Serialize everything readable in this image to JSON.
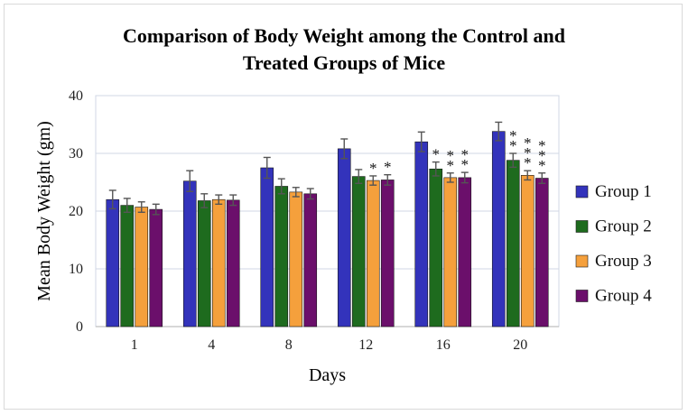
{
  "chart_data": {
    "type": "bar",
    "title_lines": [
      "Comparison of Body Weight among the Control and",
      "Treated Groups of Mice"
    ],
    "xlabel": "Days",
    "ylabel": "Mean Body Weight (gm)",
    "ylim": [
      0,
      40
    ],
    "yticks": [
      0,
      10,
      20,
      30,
      40
    ],
    "grid": true,
    "legend_position": "right",
    "categories": [
      "1",
      "4",
      "8",
      "12",
      "16",
      "20"
    ],
    "series": [
      {
        "name": "Group 1",
        "color": "#3333bb",
        "values": [
          22.0,
          25.2,
          27.5,
          30.8,
          32.0,
          33.8
        ],
        "errors": [
          1.6,
          1.8,
          1.8,
          1.7,
          1.7,
          1.6
        ]
      },
      {
        "name": "Group 2",
        "color": "#1e6b1e",
        "values": [
          21.0,
          21.8,
          24.3,
          26.0,
          27.3,
          28.8
        ],
        "errors": [
          1.2,
          1.2,
          1.3,
          1.2,
          1.2,
          1.2
        ]
      },
      {
        "name": "Group 3",
        "color": "#f5a03c",
        "values": [
          20.7,
          22.0,
          23.3,
          25.3,
          25.8,
          26.2
        ],
        "errors": [
          0.9,
          0.8,
          0.8,
          0.8,
          0.8,
          0.8
        ]
      },
      {
        "name": "Group 4",
        "color": "#6b0f6b",
        "values": [
          20.3,
          21.9,
          23.0,
          25.4,
          25.8,
          25.7
        ],
        "errors": [
          0.9,
          0.9,
          0.9,
          0.9,
          0.9,
          0.9
        ]
      }
    ],
    "significance": [
      {
        "category": "12",
        "series": "Group 3",
        "marks": "*"
      },
      {
        "category": "12",
        "series": "Group 4",
        "marks": "*"
      },
      {
        "category": "16",
        "series": "Group 2",
        "marks": "*"
      },
      {
        "category": "16",
        "series": "Group 3",
        "marks": "**"
      },
      {
        "category": "16",
        "series": "Group 4",
        "marks": "**"
      },
      {
        "category": "20",
        "series": "Group 2",
        "marks": "**"
      },
      {
        "category": "20",
        "series": "Group 3",
        "marks": "***"
      },
      {
        "category": "20",
        "series": "Group 4",
        "marks": "***"
      }
    ]
  }
}
